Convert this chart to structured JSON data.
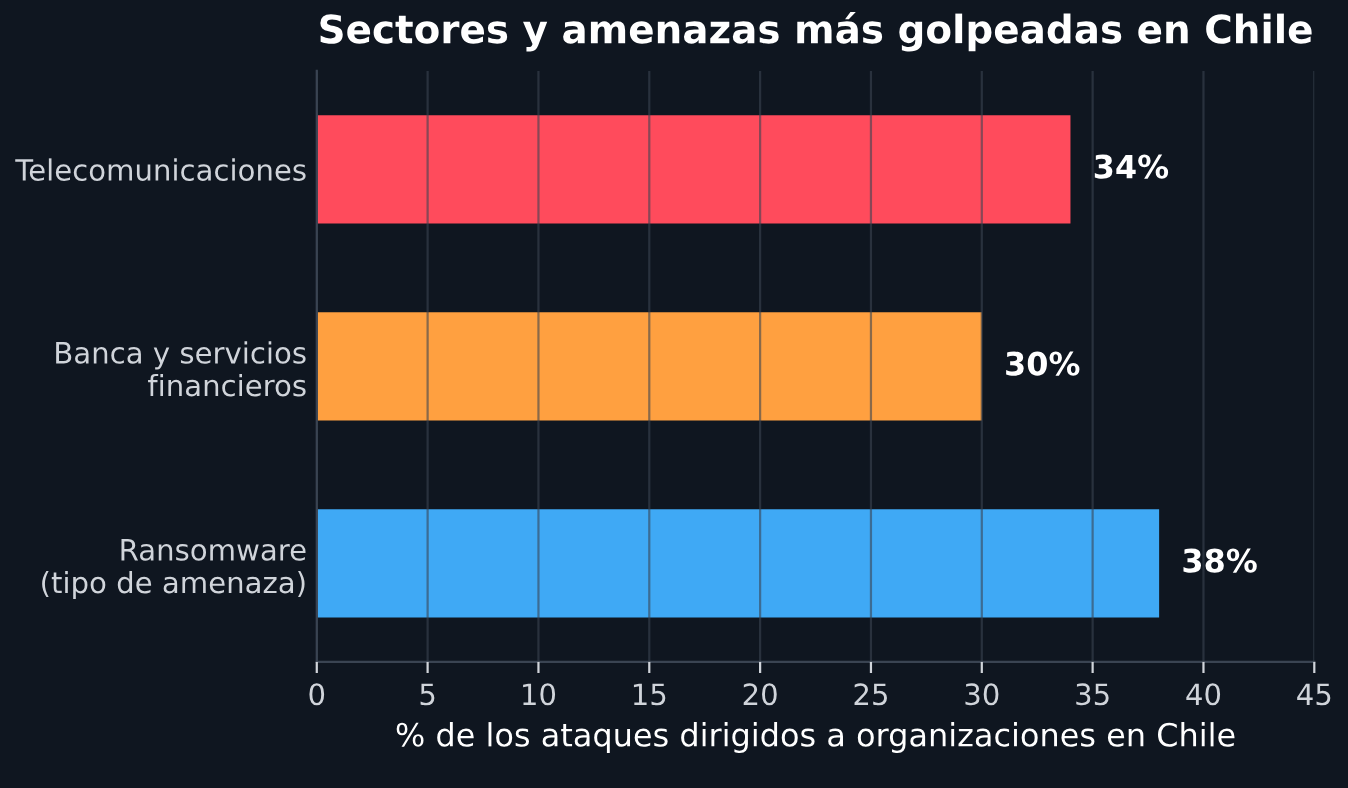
{
  "chart_data": {
    "type": "bar",
    "orientation": "horizontal",
    "title": "Sectores y amenazas más golpeadas en Chile",
    "categories": [
      "Telecomunicaciones",
      "Banca y servicios\nfinancieros",
      "Ransomware\n(tipo de amenaza)"
    ],
    "values": [
      34,
      30,
      38
    ],
    "colors": [
      "#ff4b5c",
      "#ffa040",
      "#3fa9f5"
    ],
    "value_labels": [
      "34%",
      "30%",
      "38%"
    ],
    "xlabel": "% de los ataques dirigidos a organizaciones en Chile",
    "xlim": [
      0,
      45
    ],
    "xticks": [
      0,
      5,
      10,
      15,
      20,
      25,
      30,
      35,
      40,
      45
    ],
    "grid": "x"
  }
}
